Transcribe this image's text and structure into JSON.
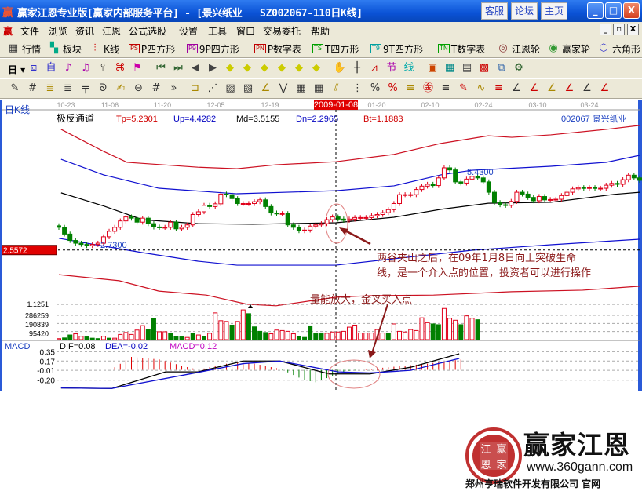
{
  "window": {
    "title": "赢家江恩专业版[赢家内部服务平台] - [景兴纸业   SZ002067-110日K线]",
    "links": [
      "客服",
      "论坛",
      "主页"
    ],
    "controls": [
      "_",
      "□",
      "X"
    ]
  },
  "menu": {
    "items": [
      "文件",
      "浏览",
      "资讯",
      "江恩",
      "公式选股",
      "设置",
      "工具",
      "窗口",
      "交易委托",
      "帮助"
    ],
    "mdi_controls": [
      "_",
      "▫",
      "X"
    ]
  },
  "toolbar1": [
    {
      "label": "行情",
      "icon": "quote-grid-icon"
    },
    {
      "label": "板块",
      "icon": "sector-blocks-icon"
    },
    {
      "label": "K线",
      "icon": "kline-icon"
    },
    {
      "label": "P四方形",
      "code": "PS",
      "color": "#c00000"
    },
    {
      "label": "9P四方形",
      "code": "P9",
      "color": "#a000a0"
    },
    {
      "label": "P数字表",
      "code": "PN",
      "color": "#c00000"
    },
    {
      "label": "T四方形",
      "code": "TS",
      "color": "#00a000"
    },
    {
      "label": "9T四方形",
      "code": "T9",
      "color": "#00a0a0"
    },
    {
      "label": "T数字表",
      "code": "TN",
      "color": "#00a000"
    },
    {
      "label": "江恩轮",
      "icon": "gann-wheel-icon"
    },
    {
      "label": "赢家轮",
      "icon": "winner-wheel-icon"
    },
    {
      "label": "六角形",
      "icon": "hexagon-icon"
    }
  ],
  "toolbar2": {
    "period": "日",
    "icons": [
      "window-icon",
      "notepad-icon",
      "chart3-icon",
      "chart9-icon",
      "candle-icon",
      "formula-icon",
      "flag-icon",
      "first-icon",
      "last-icon",
      "prev-icon",
      "next-icon",
      "left-diamond-icon",
      "up-diamond-icon",
      "cross-diamond-icon",
      "star-diamond-icon",
      "star2-diamond-icon",
      "move-diamond-icon",
      "hand-icon",
      "crosshair-icon",
      "draw-icon",
      "section-icon",
      "line-icon",
      "calendar-icon",
      "calculator-icon",
      "report-icon",
      "save-icon",
      "network-icon",
      "trade-icon"
    ]
  },
  "toolbar3": {
    "icons": [
      "pen-icon",
      "grid-icon",
      "gold-icon",
      "gold2-icon",
      "fan-icon",
      "spiral-icon",
      "brush-icon",
      "circle-icon",
      "grid2-icon",
      "more-icon",
      "box-icon",
      "fan-lines-icon",
      "square-icon",
      "square2-icon",
      "angle-icon",
      "zigzag-icon",
      "mesh-icon",
      "mesh2-icon",
      "parallel-icon",
      "table-icon",
      "percent-red-icon",
      "percent-icon",
      "percent-lines-icon",
      "gold-circle-icon",
      "gold-lines-icon",
      "pen2-icon",
      "wave-icon",
      "gold3-icon",
      "angle2-icon",
      "angle3-icon",
      "gold-angle-icon",
      "angle4-icon",
      "angle5-icon",
      "angle6-icon"
    ]
  },
  "chart": {
    "period_label": "日K线",
    "date_ticks": [
      "10-23",
      "11-06",
      "11-20",
      "12-05",
      "12-19",
      "2009-01-08",
      "01-20",
      "02-10",
      "02-24",
      "03-10",
      "03-24"
    ],
    "cursor_date": "2009-01-08",
    "indicator_name": "极反通道",
    "readouts": [
      {
        "text": "Tp=5.2301",
        "color": "#d00000"
      },
      {
        "text": "Up=4.4282",
        "color": "#0000c0"
      },
      {
        "text": "Md=3.5155",
        "color": "#000000"
      },
      {
        "text": "Dn=2.2965",
        "color": "#0000c0"
      },
      {
        "text": "Bt=1.1883",
        "color": "#d00000"
      }
    ],
    "stock_code": "002067",
    "stock_name": "景兴纸业",
    "cursor_price": "2.5572",
    "low_label": "2.7300",
    "high_label": "5.4300",
    "lower_label": "1.1251",
    "colors": {
      "up": "#e0001a",
      "down": "#008000",
      "tp": "#cc1122",
      "up_band": "#1010d0",
      "md": "#000000",
      "dn": "#1010d0",
      "bt": "#cc1122"
    }
  },
  "chart_data": {
    "type": "candlestick",
    "closes": [
      3.3,
      3.08,
      2.87,
      2.78,
      2.74,
      2.7,
      2.74,
      2.78,
      2.99,
      3.17,
      3.3,
      3.51,
      3.64,
      3.6,
      3.47,
      3.6,
      3.42,
      3.31,
      3.3,
      3.3,
      3.47,
      3.25,
      3.3,
      3.38,
      3.72,
      3.81,
      4.02,
      3.98,
      4.07,
      4.39,
      4.37,
      4.24,
      4.08,
      4.08,
      4.08,
      4.14,
      4.2,
      3.98,
      3.77,
      3.74,
      3.75,
      3.38,
      3.3,
      3.19,
      3.21,
      3.34,
      3.38,
      3.42,
      3.55,
      3.64,
      3.57,
      3.53,
      3.57,
      3.62,
      3.62,
      3.62,
      3.68,
      3.72,
      3.78,
      3.88,
      4.08,
      4.37,
      4.37,
      4.37,
      4.54,
      4.65,
      4.71,
      4.67,
      4.92,
      5.25,
      5.18,
      4.79,
      4.75,
      4.88,
      4.97,
      4.92,
      4.79,
      4.45,
      4.11,
      4.04,
      4.02,
      4.15,
      4.45,
      4.39,
      4.28,
      4.17,
      4.31,
      4.2,
      4.21,
      4.22,
      4.34,
      4.45,
      4.56,
      4.6,
      4.58,
      4.6,
      4.58,
      4.58,
      4.68,
      4.74,
      4.71,
      4.86,
      5.01,
      4.92,
      4.84
    ],
    "channel": {
      "Tp": [
        [
          0.4,
          6.51
        ],
        [
          8,
          5.79
        ],
        [
          12.2,
          5.43
        ],
        [
          24.9,
          5.27
        ],
        [
          31.9,
          5.22
        ],
        [
          38.9,
          5.35
        ],
        [
          49.6,
          5.45
        ],
        [
          60,
          5.69
        ],
        [
          68.4,
          6.05
        ],
        [
          76.9,
          6.3
        ],
        [
          81.1,
          6.25
        ],
        [
          88.1,
          6.33
        ],
        [
          98,
          6.51
        ],
        [
          104,
          6.64
        ]
      ],
      "Up": [
        [
          0.4,
          5.53
        ],
        [
          8,
          5.02
        ],
        [
          17.9,
          4.58
        ],
        [
          31.9,
          4.4
        ],
        [
          49.6,
          4.5
        ],
        [
          60,
          4.66
        ],
        [
          68.4,
          5.02
        ],
        [
          74,
          5.17
        ],
        [
          88.1,
          5.3
        ],
        [
          98,
          5.43
        ],
        [
          104,
          5.66
        ]
      ],
      "Md": [
        [
          0.4,
          4.43
        ],
        [
          8,
          4.0
        ],
        [
          15,
          3.55
        ],
        [
          24.9,
          3.42
        ],
        [
          34.7,
          3.4
        ],
        [
          49.6,
          3.45
        ],
        [
          60,
          3.63
        ],
        [
          68.4,
          3.89
        ],
        [
          76.9,
          4.09
        ],
        [
          88.1,
          4.12
        ],
        [
          99.4,
          4.38
        ],
        [
          104,
          4.45
        ]
      ],
      "Dn": [
        [
          0,
          2.94
        ],
        [
          6.6,
          2.73
        ],
        [
          15,
          2.47
        ],
        [
          24.9,
          2.19
        ],
        [
          31.9,
          2.06
        ],
        [
          49.6,
          2.06
        ],
        [
          60,
          2.27
        ],
        [
          74,
          2.55
        ],
        [
          88.1,
          2.73
        ],
        [
          104,
          2.91
        ]
      ],
      "Bt": [
        [
          0,
          1.75
        ],
        [
          10.8,
          1.55
        ],
        [
          17.9,
          1.21
        ],
        [
          26.4,
          1.08
        ],
        [
          33.7,
          0.78
        ],
        [
          38.9,
          0.73
        ],
        [
          49.6,
          1.01
        ],
        [
          55.8,
          1.06
        ],
        [
          67.1,
          1.08
        ],
        [
          81.1,
          1.19
        ],
        [
          93.8,
          1.24
        ],
        [
          104,
          1.37
        ]
      ]
    },
    "volume": {
      "ticks": [
        "286259",
        "190839",
        "95420"
      ],
      "tick_values": [
        286259,
        190839,
        95420
      ],
      "bars": [
        [
          11600,
          "r"
        ],
        [
          20000,
          "g"
        ],
        [
          55000,
          "g"
        ],
        [
          69000,
          "r"
        ],
        [
          40000,
          "r"
        ],
        [
          32000,
          "g"
        ],
        [
          17000,
          "g"
        ],
        [
          12000,
          "g"
        ],
        [
          40000,
          "r"
        ],
        [
          17000,
          "g"
        ],
        [
          17000,
          "r"
        ],
        [
          61000,
          "r"
        ],
        [
          84000,
          "r"
        ],
        [
          61000,
          "r"
        ],
        [
          113000,
          "r"
        ],
        [
          165000,
          "r"
        ],
        [
          119000,
          "g"
        ],
        [
          252000,
          "g"
        ],
        [
          93000,
          "r"
        ],
        [
          93000,
          "r"
        ],
        [
          78000,
          "g"
        ],
        [
          40000,
          "g"
        ],
        [
          32000,
          "g"
        ],
        [
          26000,
          "r"
        ],
        [
          78000,
          "g"
        ],
        [
          55000,
          "r"
        ],
        [
          40000,
          "g"
        ],
        [
          75000,
          "r"
        ],
        [
          315000,
          "r"
        ],
        [
          223000,
          "r"
        ],
        [
          214000,
          "r"
        ],
        [
          171000,
          "g"
        ],
        [
          214000,
          "r"
        ],
        [
          350000,
          "r"
        ],
        [
          306000,
          "g"
        ],
        [
          150000,
          "g"
        ],
        [
          98000,
          "g"
        ],
        [
          84000,
          "g"
        ],
        [
          69000,
          "r"
        ],
        [
          113000,
          "r"
        ],
        [
          107000,
          "r"
        ],
        [
          98000,
          "r"
        ],
        [
          69000,
          "r"
        ],
        [
          40000,
          "g"
        ],
        [
          26000,
          "g"
        ],
        [
          162000,
          "g"
        ],
        [
          69000,
          "g"
        ],
        [
          69000,
          "g"
        ],
        [
          75000,
          "r"
        ],
        [
          90000,
          "r"
        ],
        [
          90000,
          "r"
        ],
        [
          98000,
          "r"
        ],
        [
          147000,
          "r"
        ],
        [
          171000,
          "r"
        ],
        [
          78000,
          "r"
        ],
        [
          78000,
          "r"
        ],
        [
          78000,
          "r"
        ],
        [
          119000,
          "r"
        ],
        [
          78000,
          "r"
        ],
        [
          78000,
          "g"
        ],
        [
          185000,
          "r"
        ],
        [
          98000,
          "r"
        ],
        [
          90000,
          "r"
        ],
        [
          119000,
          "r"
        ],
        [
          107000,
          "r"
        ],
        [
          257000,
          "r"
        ],
        [
          200000,
          "r"
        ],
        [
          185000,
          "g"
        ],
        [
          176000,
          "g"
        ],
        [
          367000,
          "r"
        ],
        [
          252000,
          "r"
        ],
        [
          228000,
          "r"
        ],
        [
          176000,
          "g"
        ],
        [
          280000,
          "r"
        ],
        [
          252000,
          "r"
        ],
        [
          234000,
          "g"
        ]
      ]
    },
    "macd": {
      "label": "MACD",
      "readouts": [
        {
          "text": "DIF=0.08",
          "color": "#000000"
        },
        {
          "text": "DEA=-0.02",
          "color": "#0000c0"
        },
        {
          "text": "MACD=0.12",
          "color": "#c000c0"
        }
      ],
      "ticks": [
        "0.35",
        "0.17",
        "-0.01",
        "-0.20"
      ],
      "tick_values": [
        0.35,
        0.17,
        -0.01,
        -0.2
      ],
      "DIF": [
        [
          0.4,
          -0.35
        ],
        [
          9.5,
          -0.36
        ],
        [
          19.1,
          -0.04
        ],
        [
          24.9,
          -0.04
        ],
        [
          33,
          0.17
        ],
        [
          39.6,
          0.17
        ],
        [
          48.4,
          -0.08
        ],
        [
          55.7,
          -0.08
        ],
        [
          63,
          0.05
        ],
        [
          71.7,
          0.31
        ]
      ],
      "DEA": [
        [
          0.4,
          -0.35
        ],
        [
          9.5,
          -0.36
        ],
        [
          24.9,
          -0.05
        ],
        [
          33,
          0.12
        ],
        [
          39.6,
          0.17
        ],
        [
          50,
          -0.04
        ],
        [
          55.7,
          -0.06
        ],
        [
          63,
          -0.01
        ],
        [
          71.7,
          0.22
        ]
      ],
      "hist": [
        [
          10,
          0.05
        ],
        [
          13,
          0.25
        ],
        [
          18,
          0.2
        ],
        [
          22,
          0.08
        ],
        [
          25,
          0.0
        ],
        [
          27,
          0.05
        ],
        [
          31,
          0.14
        ],
        [
          35,
          0.12
        ],
        [
          39,
          0.03
        ],
        [
          41,
          -0.05
        ],
        [
          44,
          -0.2
        ],
        [
          46,
          -0.24
        ],
        [
          49,
          -0.12
        ],
        [
          52,
          -0.02
        ],
        [
          56,
          0.02
        ],
        [
          60,
          0.06
        ],
        [
          66,
          0.12
        ],
        [
          72,
          0.2
        ]
      ]
    }
  },
  "annotations": {
    "note1_line1": "两谷夹山之后，在09年1月8日向上突破生命",
    "note1_line2": "线，是一个介入点的位置，投资者可以进行操作",
    "note2": "量能放大，金叉买入点",
    "color": "#8b1a1a"
  },
  "logo": {
    "brand": "赢家江恩",
    "seal": [
      "江",
      "赢",
      "恩",
      "家"
    ],
    "url": "www.360gann.com",
    "company": "郑州亨瑞软件开发有限公司 官网"
  }
}
